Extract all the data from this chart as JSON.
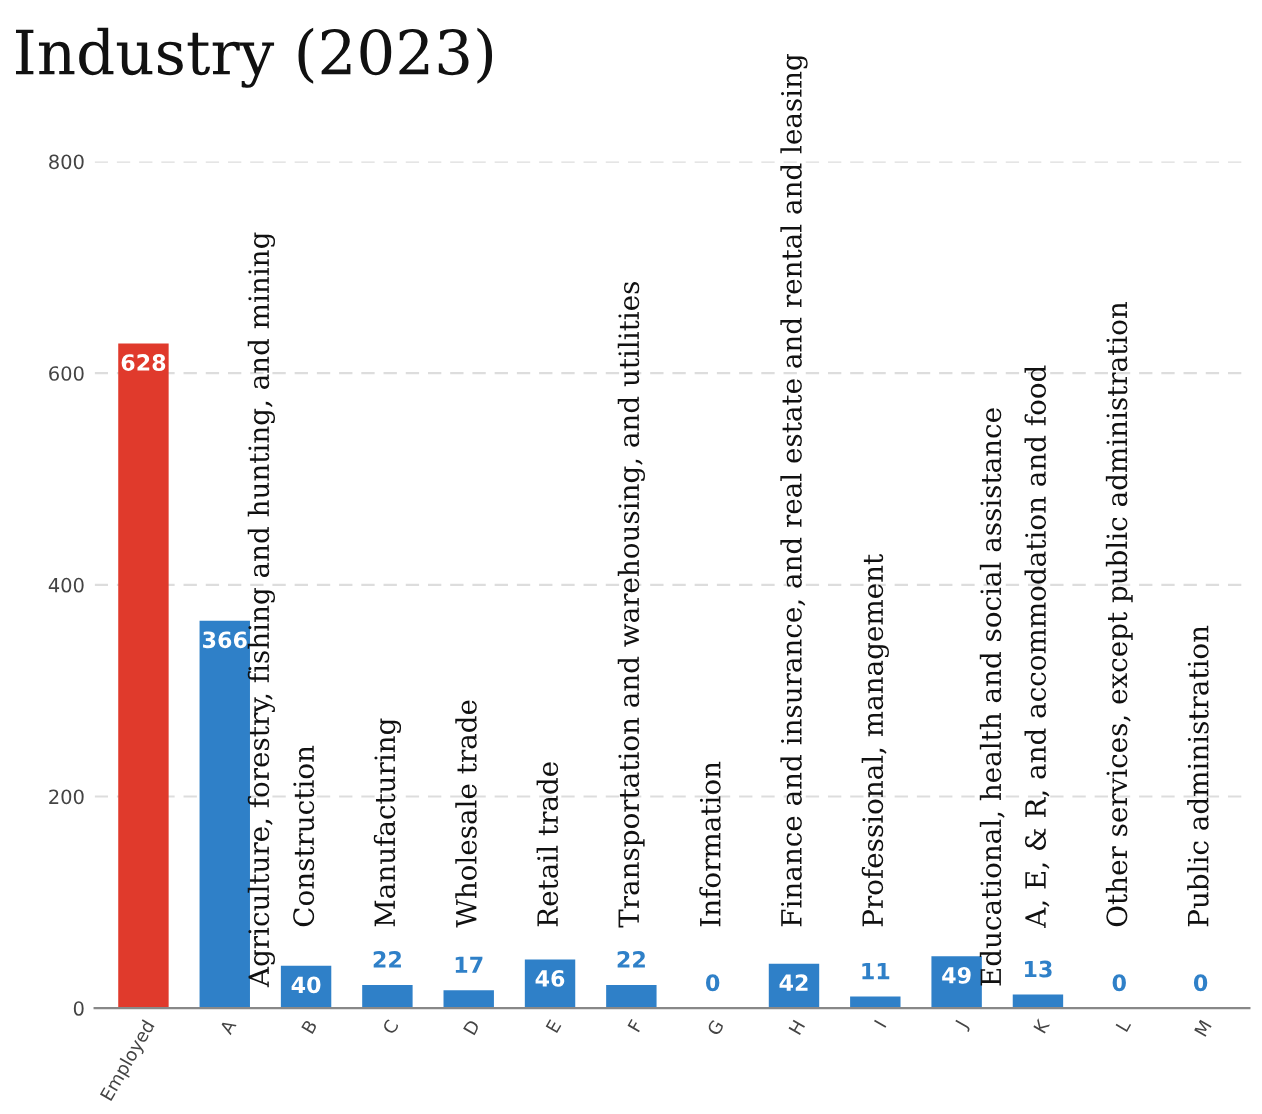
{
  "chart_data": {
    "type": "bar",
    "title": "Industry (2023)",
    "categories": [
      "Employed",
      "A",
      "B",
      "C",
      "D",
      "E",
      "F",
      "G",
      "H",
      "I",
      "J",
      "K",
      "L",
      "M"
    ],
    "values": [
      628,
      366,
      40,
      22,
      17,
      46,
      22,
      0,
      42,
      11,
      49,
      13,
      0,
      0
    ],
    "colors": [
      "#e03a2c",
      "#2f80c8",
      "#2f80c8",
      "#2f80c8",
      "#2f80c8",
      "#2f80c8",
      "#2f80c8",
      "#2f80c8",
      "#2f80c8",
      "#2f80c8",
      "#2f80c8",
      "#2f80c8",
      "#2f80c8",
      "#2f80c8"
    ],
    "ylim": [
      0,
      800
    ],
    "yticks": [
      0,
      200,
      400,
      600,
      800
    ],
    "grid": "y",
    "data_labels": true,
    "annotations": [
      "Agriculture, forestry, fishing and hunting, and mining",
      "Construction",
      "Manufacturing",
      "Wholesale trade",
      "Retail trade",
      "Transportation and warehousing, and utilities",
      "Information",
      "Finance and insurance, and real estate and rental and leasing",
      "Professional, management",
      "Educational, health and social assistance",
      "A, E, & R, and accommodation and food",
      "Other services, except public administration",
      "Public administration"
    ]
  }
}
